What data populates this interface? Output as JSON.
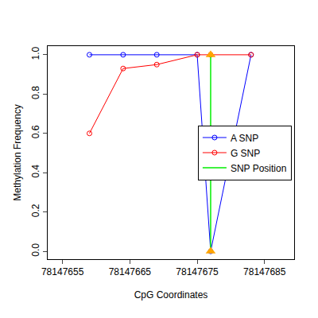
{
  "chart_data": {
    "type": "line",
    "x_label": "CpG Coordinates",
    "y_label": "Methylation Frequency",
    "x": [
      78147659,
      78147664,
      78147669,
      78147675,
      78147677,
      78147683
    ],
    "series": [
      {
        "name": "A SNP",
        "color": "#0000ff",
        "values": [
          1.0,
          1.0,
          1.0,
          1.0,
          0.0,
          1.0
        ]
      },
      {
        "name": "G SNP",
        "color": "#ff0000",
        "values": [
          0.6,
          0.93,
          0.95,
          1.0,
          1.0,
          1.0
        ]
      }
    ],
    "snp": {
      "name": "SNP Position",
      "color": "#00ee00",
      "x": 78147677,
      "values": [
        0,
        1
      ]
    },
    "xlim": [
      78147652.8,
      78147689.4
    ],
    "xticks": [
      78147655,
      78147665,
      78147675,
      78147685
    ],
    "ylim": [
      -0.04,
      1.044
    ],
    "yticks": [
      {
        "value": 0,
        "label": "0.0"
      },
      0.2,
      0.4,
      0.6,
      0.8,
      {
        "value": 1,
        "label": "1.0"
      }
    ],
    "legend": "right",
    "marker": "circle-open",
    "grid": false
  }
}
